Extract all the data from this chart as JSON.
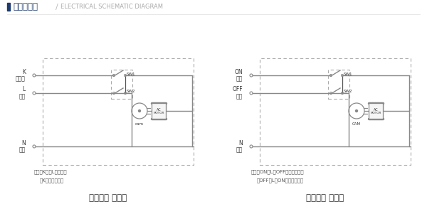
{
  "title_cn": "电器原理图",
  "title_slash": "/",
  "title_en": "ELECTRICAL SCHEMATIC DIAGRAM",
  "title_bar_color": "#1e3a6e",
  "title_cn_color": "#1e3a6e",
  "title_en_color": "#aaaaaa",
  "bg_color": "#ffffff",
  "line_color": "#888888",
  "dashed_box_color": "#aaaaaa",
  "text_color": "#555555",
  "dark_text_color": "#333333",
  "diagram1": {
    "title": "三线一控 接线图",
    "label1": "K",
    "label1b": "控制线",
    "label2": "L",
    "label2b": "火线",
    "label3": "N",
    "label3b": "零线",
    "sw1": "SW1",
    "sw2": "SW2",
    "cam": "cam",
    "note1": "注：当K外接L时、开阀",
    "note2": "当K断开时、关阀"
  },
  "diagram2": {
    "title": "三线二控 接线图",
    "label1": "ON",
    "label1b": "开阀",
    "label2": "OFF",
    "label2b": "关阀",
    "label3": "N",
    "label3b": "零线",
    "sw1": "SW1",
    "sw2": "SW2",
    "cam": "CAM",
    "note1": "注：当ON接L、OFF断开时、开阀",
    "note2": "当OFF接L、ON断开时、关阀"
  }
}
